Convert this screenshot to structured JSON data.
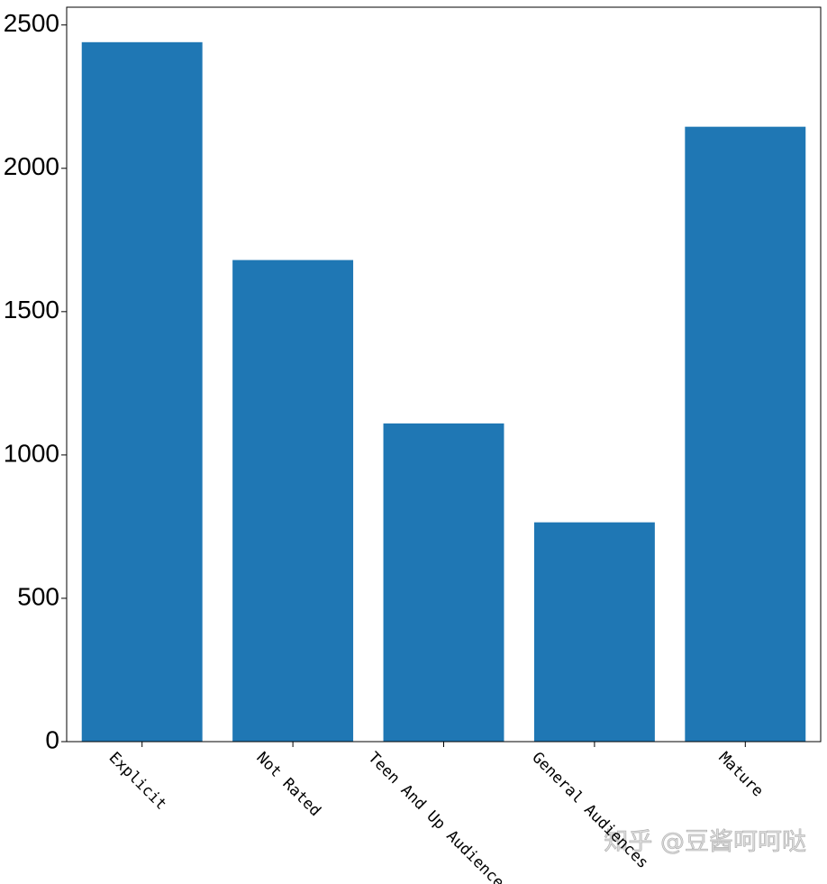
{
  "chart_data": {
    "type": "bar",
    "categories": [
      "Explicit",
      "Not Rated",
      "Teen And Up Audiences",
      "General Audiences",
      "Mature"
    ],
    "values": [
      2440,
      1680,
      1110,
      765,
      2145
    ],
    "color": "#1f77b4",
    "ylim": [
      0,
      2562
    ],
    "yticks": [
      0,
      500,
      1000,
      1500,
      2000,
      2500
    ],
    "watermark": "知乎 @豆酱呵呵哒"
  }
}
